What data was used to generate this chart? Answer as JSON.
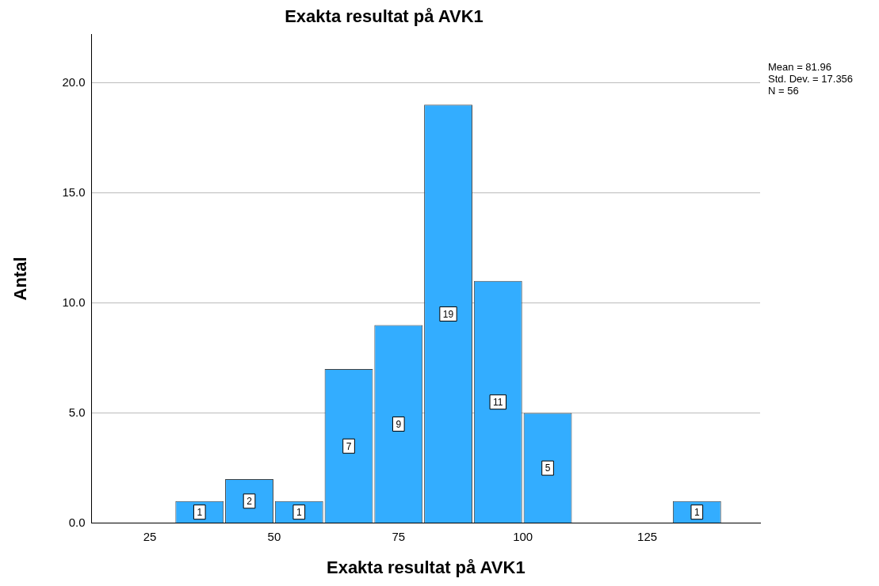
{
  "chart_data": {
    "type": "histogram",
    "title": "Exakta resultat på AVK1",
    "xlabel": "Exakta resultat på AVK1",
    "ylabel": "Antal",
    "bins": [
      30,
      40,
      50,
      60,
      70,
      80,
      90,
      100,
      110,
      120,
      130,
      140
    ],
    "values": [
      1,
      2,
      1,
      7,
      9,
      19,
      11,
      5,
      0,
      0,
      1
    ],
    "color": "#33adff",
    "xlim": [
      13.3,
      147.7
    ],
    "xticks": [
      25,
      50,
      75,
      100,
      125
    ],
    "ylim": [
      0,
      22.2
    ],
    "yticks": [
      {
        "value": 0,
        "label": "0.0"
      },
      {
        "value": 5,
        "label": "5.0"
      },
      {
        "value": 10,
        "label": "10.0"
      },
      {
        "value": 15,
        "label": "15.0"
      },
      {
        "value": 20,
        "label": "20.0"
      }
    ],
    "grid": "y",
    "value_labels": [
      "1",
      "2",
      "1",
      "7",
      "9",
      "19",
      "11",
      "5",
      null,
      null,
      "1"
    ],
    "legend": false,
    "annotations": [
      "Mean = 81.96",
      "Std. Dev. = 17.356",
      "N = 56"
    ]
  }
}
